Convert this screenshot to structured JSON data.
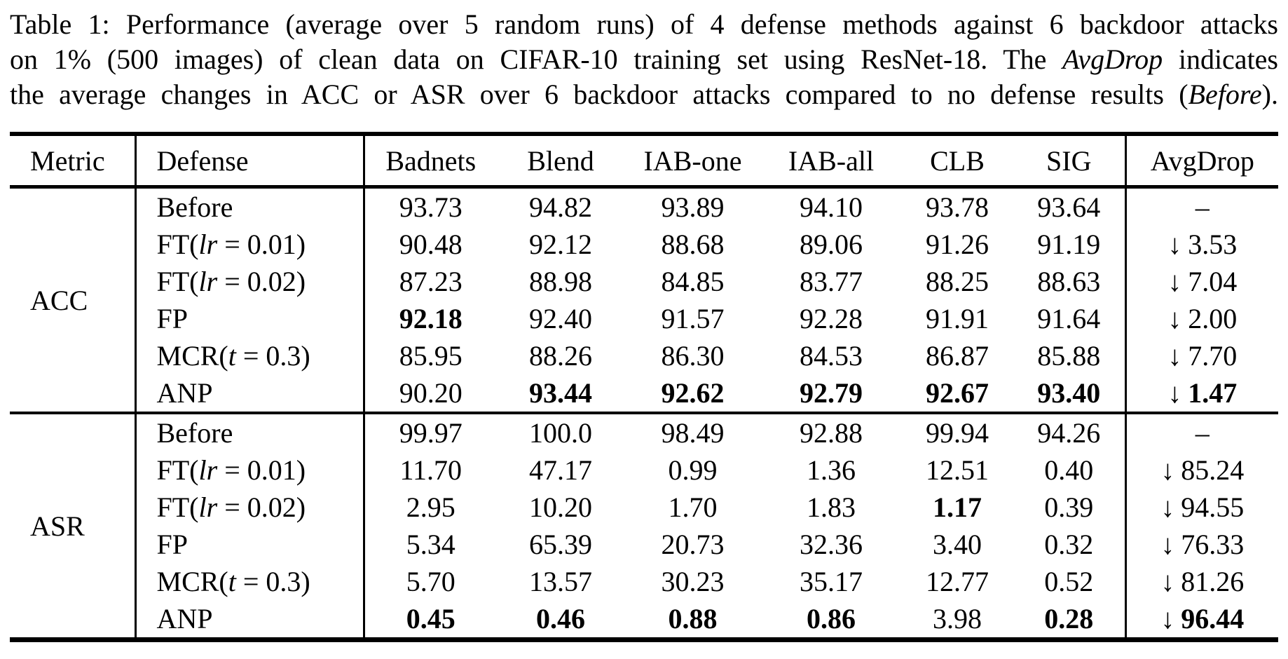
{
  "page": {
    "caption_line1": "Table 1: Performance (average over 5 random runs) of 4 defense methods against 6 backdoor attacks",
    "caption_line2_pre": "on 1% (500 images) of clean data on CIFAR-10 training set using ResNet-18. The ",
    "caption_line2_italic": "AvgDrop",
    "caption_line2_post": " indicates",
    "caption_line3_pre": "the average changes in ACC or ASR over 6 backdoor attacks compared to no defense results (",
    "caption_line3_italic": "Before",
    "caption_line3_post": ").",
    "text_color": "#000000",
    "background_color": "#ffffff"
  },
  "table": {
    "headers": {
      "metric": "Metric",
      "defense": "Defense",
      "avgdrop": "AvgDrop"
    },
    "attack_columns": [
      "Badnets",
      "Blend",
      "IAB-one",
      "IAB-all",
      "CLB",
      "SIG"
    ],
    "down_arrow": "↓",
    "sections": [
      {
        "metric": "ACC",
        "rows": [
          {
            "defense_pre": "Before",
            "defense_italic": "",
            "defense_post": "",
            "values": [
              "93.73",
              "94.82",
              "93.89",
              "94.10",
              "93.78",
              "93.64"
            ],
            "bold": [
              false,
              false,
              false,
              false,
              false,
              false
            ],
            "avgdrop": "–",
            "avgdrop_arrow": false,
            "avgdrop_bold": false
          },
          {
            "defense_pre": "FT(",
            "defense_italic": "lr",
            "defense_post": " = 0.01)",
            "values": [
              "90.48",
              "92.12",
              "88.68",
              "89.06",
              "91.26",
              "91.19"
            ],
            "bold": [
              false,
              false,
              false,
              false,
              false,
              false
            ],
            "avgdrop": "3.53",
            "avgdrop_arrow": true,
            "avgdrop_bold": false
          },
          {
            "defense_pre": "FT(",
            "defense_italic": "lr",
            "defense_post": " = 0.02)",
            "values": [
              "87.23",
              "88.98",
              "84.85",
              "83.77",
              "88.25",
              "88.63"
            ],
            "bold": [
              false,
              false,
              false,
              false,
              false,
              false
            ],
            "avgdrop": "7.04",
            "avgdrop_arrow": true,
            "avgdrop_bold": false
          },
          {
            "defense_pre": "FP",
            "defense_italic": "",
            "defense_post": "",
            "values": [
              "92.18",
              "92.40",
              "91.57",
              "92.28",
              "91.91",
              "91.64"
            ],
            "bold": [
              true,
              false,
              false,
              false,
              false,
              false
            ],
            "avgdrop": "2.00",
            "avgdrop_arrow": true,
            "avgdrop_bold": false
          },
          {
            "defense_pre": "MCR(",
            "defense_italic": "t",
            "defense_post": " = 0.3)",
            "values": [
              "85.95",
              "88.26",
              "86.30",
              "84.53",
              "86.87",
              "85.88"
            ],
            "bold": [
              false,
              false,
              false,
              false,
              false,
              false
            ],
            "avgdrop": "7.70",
            "avgdrop_arrow": true,
            "avgdrop_bold": false
          },
          {
            "defense_pre": "ANP",
            "defense_italic": "",
            "defense_post": "",
            "values": [
              "90.20",
              "93.44",
              "92.62",
              "92.79",
              "92.67",
              "93.40"
            ],
            "bold": [
              false,
              true,
              true,
              true,
              true,
              true
            ],
            "avgdrop": "1.47",
            "avgdrop_arrow": true,
            "avgdrop_bold": true
          }
        ]
      },
      {
        "metric": "ASR",
        "rows": [
          {
            "defense_pre": "Before",
            "defense_italic": "",
            "defense_post": "",
            "values": [
              "99.97",
              "100.0",
              "98.49",
              "92.88",
              "99.94",
              "94.26"
            ],
            "bold": [
              false,
              false,
              false,
              false,
              false,
              false
            ],
            "avgdrop": "–",
            "avgdrop_arrow": false,
            "avgdrop_bold": false
          },
          {
            "defense_pre": "FT(",
            "defense_italic": "lr",
            "defense_post": " = 0.01)",
            "values": [
              "11.70",
              "47.17",
              "0.99",
              "1.36",
              "12.51",
              "0.40"
            ],
            "bold": [
              false,
              false,
              false,
              false,
              false,
              false
            ],
            "avgdrop": "85.24",
            "avgdrop_arrow": true,
            "avgdrop_bold": false
          },
          {
            "defense_pre": "FT(",
            "defense_italic": "lr",
            "defense_post": " = 0.02)",
            "values": [
              "2.95",
              "10.20",
              "1.70",
              "1.83",
              "1.17",
              "0.39"
            ],
            "bold": [
              false,
              false,
              false,
              false,
              true,
              false
            ],
            "avgdrop": "94.55",
            "avgdrop_arrow": true,
            "avgdrop_bold": false
          },
          {
            "defense_pre": "FP",
            "defense_italic": "",
            "defense_post": "",
            "values": [
              "5.34",
              "65.39",
              "20.73",
              "32.36",
              "3.40",
              "0.32"
            ],
            "bold": [
              false,
              false,
              false,
              false,
              false,
              false
            ],
            "avgdrop": "76.33",
            "avgdrop_arrow": true,
            "avgdrop_bold": false
          },
          {
            "defense_pre": "MCR(",
            "defense_italic": "t",
            "defense_post": " = 0.3)",
            "values": [
              "5.70",
              "13.57",
              "30.23",
              "35.17",
              "12.77",
              "0.52"
            ],
            "bold": [
              false,
              false,
              false,
              false,
              false,
              false
            ],
            "avgdrop": "81.26",
            "avgdrop_arrow": true,
            "avgdrop_bold": false
          },
          {
            "defense_pre": "ANP",
            "defense_italic": "",
            "defense_post": "",
            "values": [
              "0.45",
              "0.46",
              "0.88",
              "0.86",
              "3.98",
              "0.28"
            ],
            "bold": [
              true,
              true,
              true,
              true,
              false,
              true
            ],
            "avgdrop": "96.44",
            "avgdrop_arrow": true,
            "avgdrop_bold": true
          }
        ]
      }
    ]
  }
}
